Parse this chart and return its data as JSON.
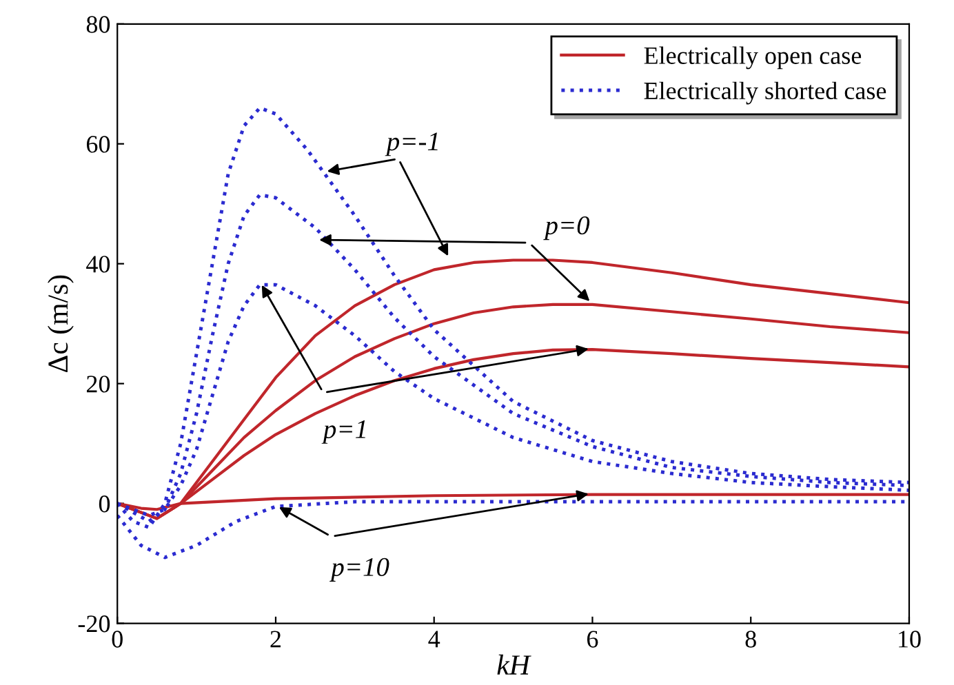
{
  "chart_data": {
    "type": "line",
    "xlabel": "kH",
    "ylabel": "Δc (m/s)",
    "xlim": [
      0,
      10
    ],
    "ylim": [
      -20,
      80
    ],
    "xticks": [
      0,
      2,
      4,
      6,
      8,
      10
    ],
    "yticks": [
      -20,
      0,
      20,
      40,
      60,
      80
    ],
    "grid": false,
    "legend": "top right",
    "marker": "none",
    "annotations": [
      {
        "text": "p=-1",
        "x": 2.6,
        "y": 55.3
      },
      {
        "text": "p=0",
        "x": 2.5,
        "y": 44
      },
      {
        "text": "p=1",
        "x": 1.8,
        "y": 37
      },
      {
        "text": "p=10",
        "x": 2.0,
        "y": -0.3
      }
    ],
    "series": [
      {
        "name": "Electrically open case",
        "color": "#c0262b",
        "line_style": "solid",
        "x": [
          0,
          0.3,
          0.5,
          0.8,
          1.2,
          1.6,
          2,
          2.5,
          3,
          3.5,
          4,
          4.5,
          5,
          5.5,
          6,
          7,
          8,
          9,
          10
        ],
        "values": [
          0,
          -1.5,
          -2.5,
          0,
          7,
          14,
          21,
          28,
          33,
          36.5,
          39,
          40.2,
          40.6,
          40.6,
          40.2,
          38.5,
          36.5,
          35,
          33.5
        ]
      },
      {
        "color": "#c0262b",
        "line_style": "solid",
        "x": [
          0,
          0.3,
          0.5,
          0.8,
          1.2,
          1.6,
          2,
          2.5,
          3,
          3.5,
          4,
          4.5,
          5,
          5.5,
          6,
          7,
          8,
          9,
          10
        ],
        "values": [
          0,
          -1.5,
          -2.5,
          0,
          5.5,
          11,
          15.5,
          20.5,
          24.5,
          27.5,
          30,
          31.8,
          32.8,
          33.2,
          33.2,
          32,
          30.8,
          29.5,
          28.5
        ]
      },
      {
        "color": "#c0262b",
        "line_style": "solid",
        "x": [
          0,
          0.3,
          0.5,
          0.8,
          1.2,
          1.6,
          2,
          2.5,
          3,
          3.5,
          4,
          4.5,
          5,
          5.5,
          6,
          7,
          8,
          9,
          10
        ],
        "values": [
          0,
          -1.5,
          -2.5,
          0,
          4,
          8,
          11.5,
          15,
          18,
          20.5,
          22.5,
          24,
          25,
          25.6,
          25.7,
          25,
          24.2,
          23.5,
          22.8
        ]
      },
      {
        "color": "#c0262b",
        "line_style": "solid",
        "x": [
          0,
          0.3,
          0.5,
          0.8,
          2,
          4,
          6,
          10
        ],
        "values": [
          0,
          -0.8,
          -1,
          0,
          0.8,
          1.3,
          1.5,
          1.5
        ]
      },
      {
        "name": "Electrically shorted case",
        "color": "#2b2bd0",
        "line_style": "dotted",
        "x": [
          0,
          0.2,
          0.4,
          0.6,
          0.8,
          1,
          1.2,
          1.4,
          1.6,
          1.8,
          2,
          2.4,
          3,
          3.5,
          4,
          5,
          6,
          7,
          8,
          9,
          10
        ],
        "values": [
          0,
          -3,
          -4,
          0,
          10,
          25,
          40,
          55,
          63,
          66,
          65,
          59,
          48,
          38,
          29,
          17,
          10.5,
          7,
          5,
          4,
          3.5
        ]
      },
      {
        "color": "#2b2bd0",
        "line_style": "dotted",
        "x": [
          0,
          0.4,
          0.6,
          0.8,
          1,
          1.2,
          1.4,
          1.6,
          1.8,
          2,
          2.5,
          3,
          3.5,
          4,
          5,
          6,
          7,
          8,
          9,
          10
        ],
        "values": [
          0,
          -3,
          -1,
          5,
          15,
          28,
          40,
          48,
          51.5,
          51,
          46,
          39,
          31,
          24.5,
          15,
          9.5,
          6,
          4.5,
          3.5,
          3
        ]
      },
      {
        "color": "#2b2bd0",
        "line_style": "dotted",
        "x": [
          0,
          0.4,
          0.6,
          0.8,
          1,
          1.2,
          1.4,
          1.6,
          1.8,
          2,
          2.5,
          3,
          3.5,
          4,
          5,
          6,
          7,
          8,
          9,
          10
        ],
        "values": [
          0,
          -2,
          -1,
          3,
          9,
          18,
          27,
          33,
          36.5,
          36.5,
          33,
          28,
          22,
          17.5,
          11,
          7,
          5,
          3.5,
          2.8,
          2.2
        ]
      },
      {
        "color": "#2b2bd0",
        "line_style": "dotted",
        "x": [
          0,
          0.3,
          0.6,
          1,
          1.5,
          2,
          3,
          5,
          10
        ],
        "values": [
          -2,
          -7,
          -9,
          -7,
          -3,
          -0.5,
          0.3,
          0.3,
          0.3
        ]
      }
    ]
  }
}
